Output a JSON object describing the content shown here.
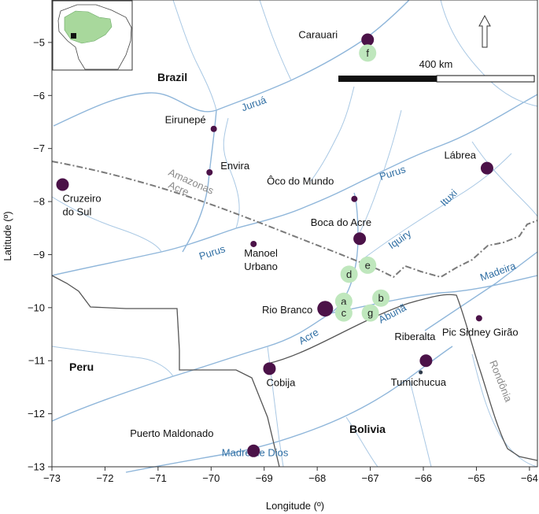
{
  "colors": {
    "city_marker": "#4b1248",
    "site_marker": "#bfe7bd",
    "river": "#a9c8e4",
    "river_label": "#2f6ea3",
    "state_border": "#7a7a7a",
    "country_border": "#555555",
    "inset_land": "#a8d89c",
    "inset_study_area": "#111111"
  },
  "axes": {
    "xlabel": "Longitude (º)",
    "ylabel": "Latitude (º)",
    "x_ticks": [
      "−73",
      "−72",
      "−71",
      "−70",
      "−69",
      "−68",
      "−67",
      "−66",
      "−65",
      "−64"
    ],
    "y_ticks": [
      "−5",
      "−6",
      "−7",
      "−8",
      "−9",
      "−10",
      "−11",
      "−12",
      "−13"
    ]
  },
  "scale_bar": {
    "label": "400 km",
    "length_km": 400
  },
  "north_arrow": {
    "icon": "north-arrow-icon"
  },
  "countries": [
    "Brazil",
    "Peru",
    "Bolivia"
  ],
  "states": {
    "north": "Amazonas",
    "south": "Acre",
    "east": "Rondônia"
  },
  "rivers": [
    {
      "name": "Juruá",
      "lon": -69.4,
      "lat": -6.3
    },
    {
      "name": "Purus",
      "lon": -66.8,
      "lat": -7.6
    },
    {
      "name": "Ituxi",
      "lon": -65.6,
      "lat": -8.1
    },
    {
      "name": "Iquiry",
      "lon": -66.6,
      "lat": -8.9
    },
    {
      "name": "Madeira",
      "lon": -64.9,
      "lat": -9.5
    },
    {
      "name": "Purus",
      "lon": -70.2,
      "lat": -9.1
    },
    {
      "name": "Acre",
      "lon": -68.3,
      "lat": -10.7
    },
    {
      "name": "Abunã",
      "lon": -66.8,
      "lat": -10.3
    },
    {
      "name": "Madre de Dios",
      "lon": -69.8,
      "lat": -12.8
    }
  ],
  "cities": [
    {
      "name": "Carauari",
      "lon": -67.05,
      "lat": -4.95,
      "size": "large"
    },
    {
      "name": "Eirunepé",
      "lon": -69.95,
      "lat": -6.63,
      "size": "small"
    },
    {
      "name": "Envira",
      "lon": -70.03,
      "lat": -7.45,
      "size": "small"
    },
    {
      "name": "Lábrea",
      "lon": -64.8,
      "lat": -7.37,
      "size": "large"
    },
    {
      "name": "Cruzeiro do Sul",
      "lon": -72.8,
      "lat": -7.68,
      "size": "large"
    },
    {
      "name": "Ôco do Mundo",
      "lon": -67.3,
      "lat": -7.95,
      "size": "small"
    },
    {
      "name": "Boca do Acre",
      "lon": -67.2,
      "lat": -8.7,
      "size": "large"
    },
    {
      "name": "Manoel Urbano",
      "lon": -69.2,
      "lat": -8.8,
      "size": "small"
    },
    {
      "name": "Rio Branco",
      "lon": -67.85,
      "lat": -10.02,
      "size": "xlarge"
    },
    {
      "name": "Pic Sidney Girão",
      "lon": -64.95,
      "lat": -10.2,
      "size": "small"
    },
    {
      "name": "Riberalta",
      "lon": -65.95,
      "lat": -11.0,
      "size": "large"
    },
    {
      "name": "Tumichucua",
      "lon": -66.05,
      "lat": -11.22,
      "size": "tiny"
    },
    {
      "name": "Cobija",
      "lon": -68.9,
      "lat": -11.15,
      "size": "large"
    },
    {
      "name": "Puerto Maldonado",
      "lon": -69.2,
      "lat": -12.7,
      "size": "large"
    }
  ],
  "sites": [
    {
      "label": "f",
      "lon": -67.05,
      "lat": -5.2
    },
    {
      "label": "e",
      "lon": -67.05,
      "lat": -9.2
    },
    {
      "label": "d",
      "lon": -67.4,
      "lat": -9.37
    },
    {
      "label": "a",
      "lon": -67.5,
      "lat": -9.88
    },
    {
      "label": "b",
      "lon": -66.8,
      "lat": -9.82
    },
    {
      "label": "c",
      "lon": -67.5,
      "lat": -10.1
    },
    {
      "label": "g",
      "lon": -67.0,
      "lat": -10.1
    }
  ]
}
